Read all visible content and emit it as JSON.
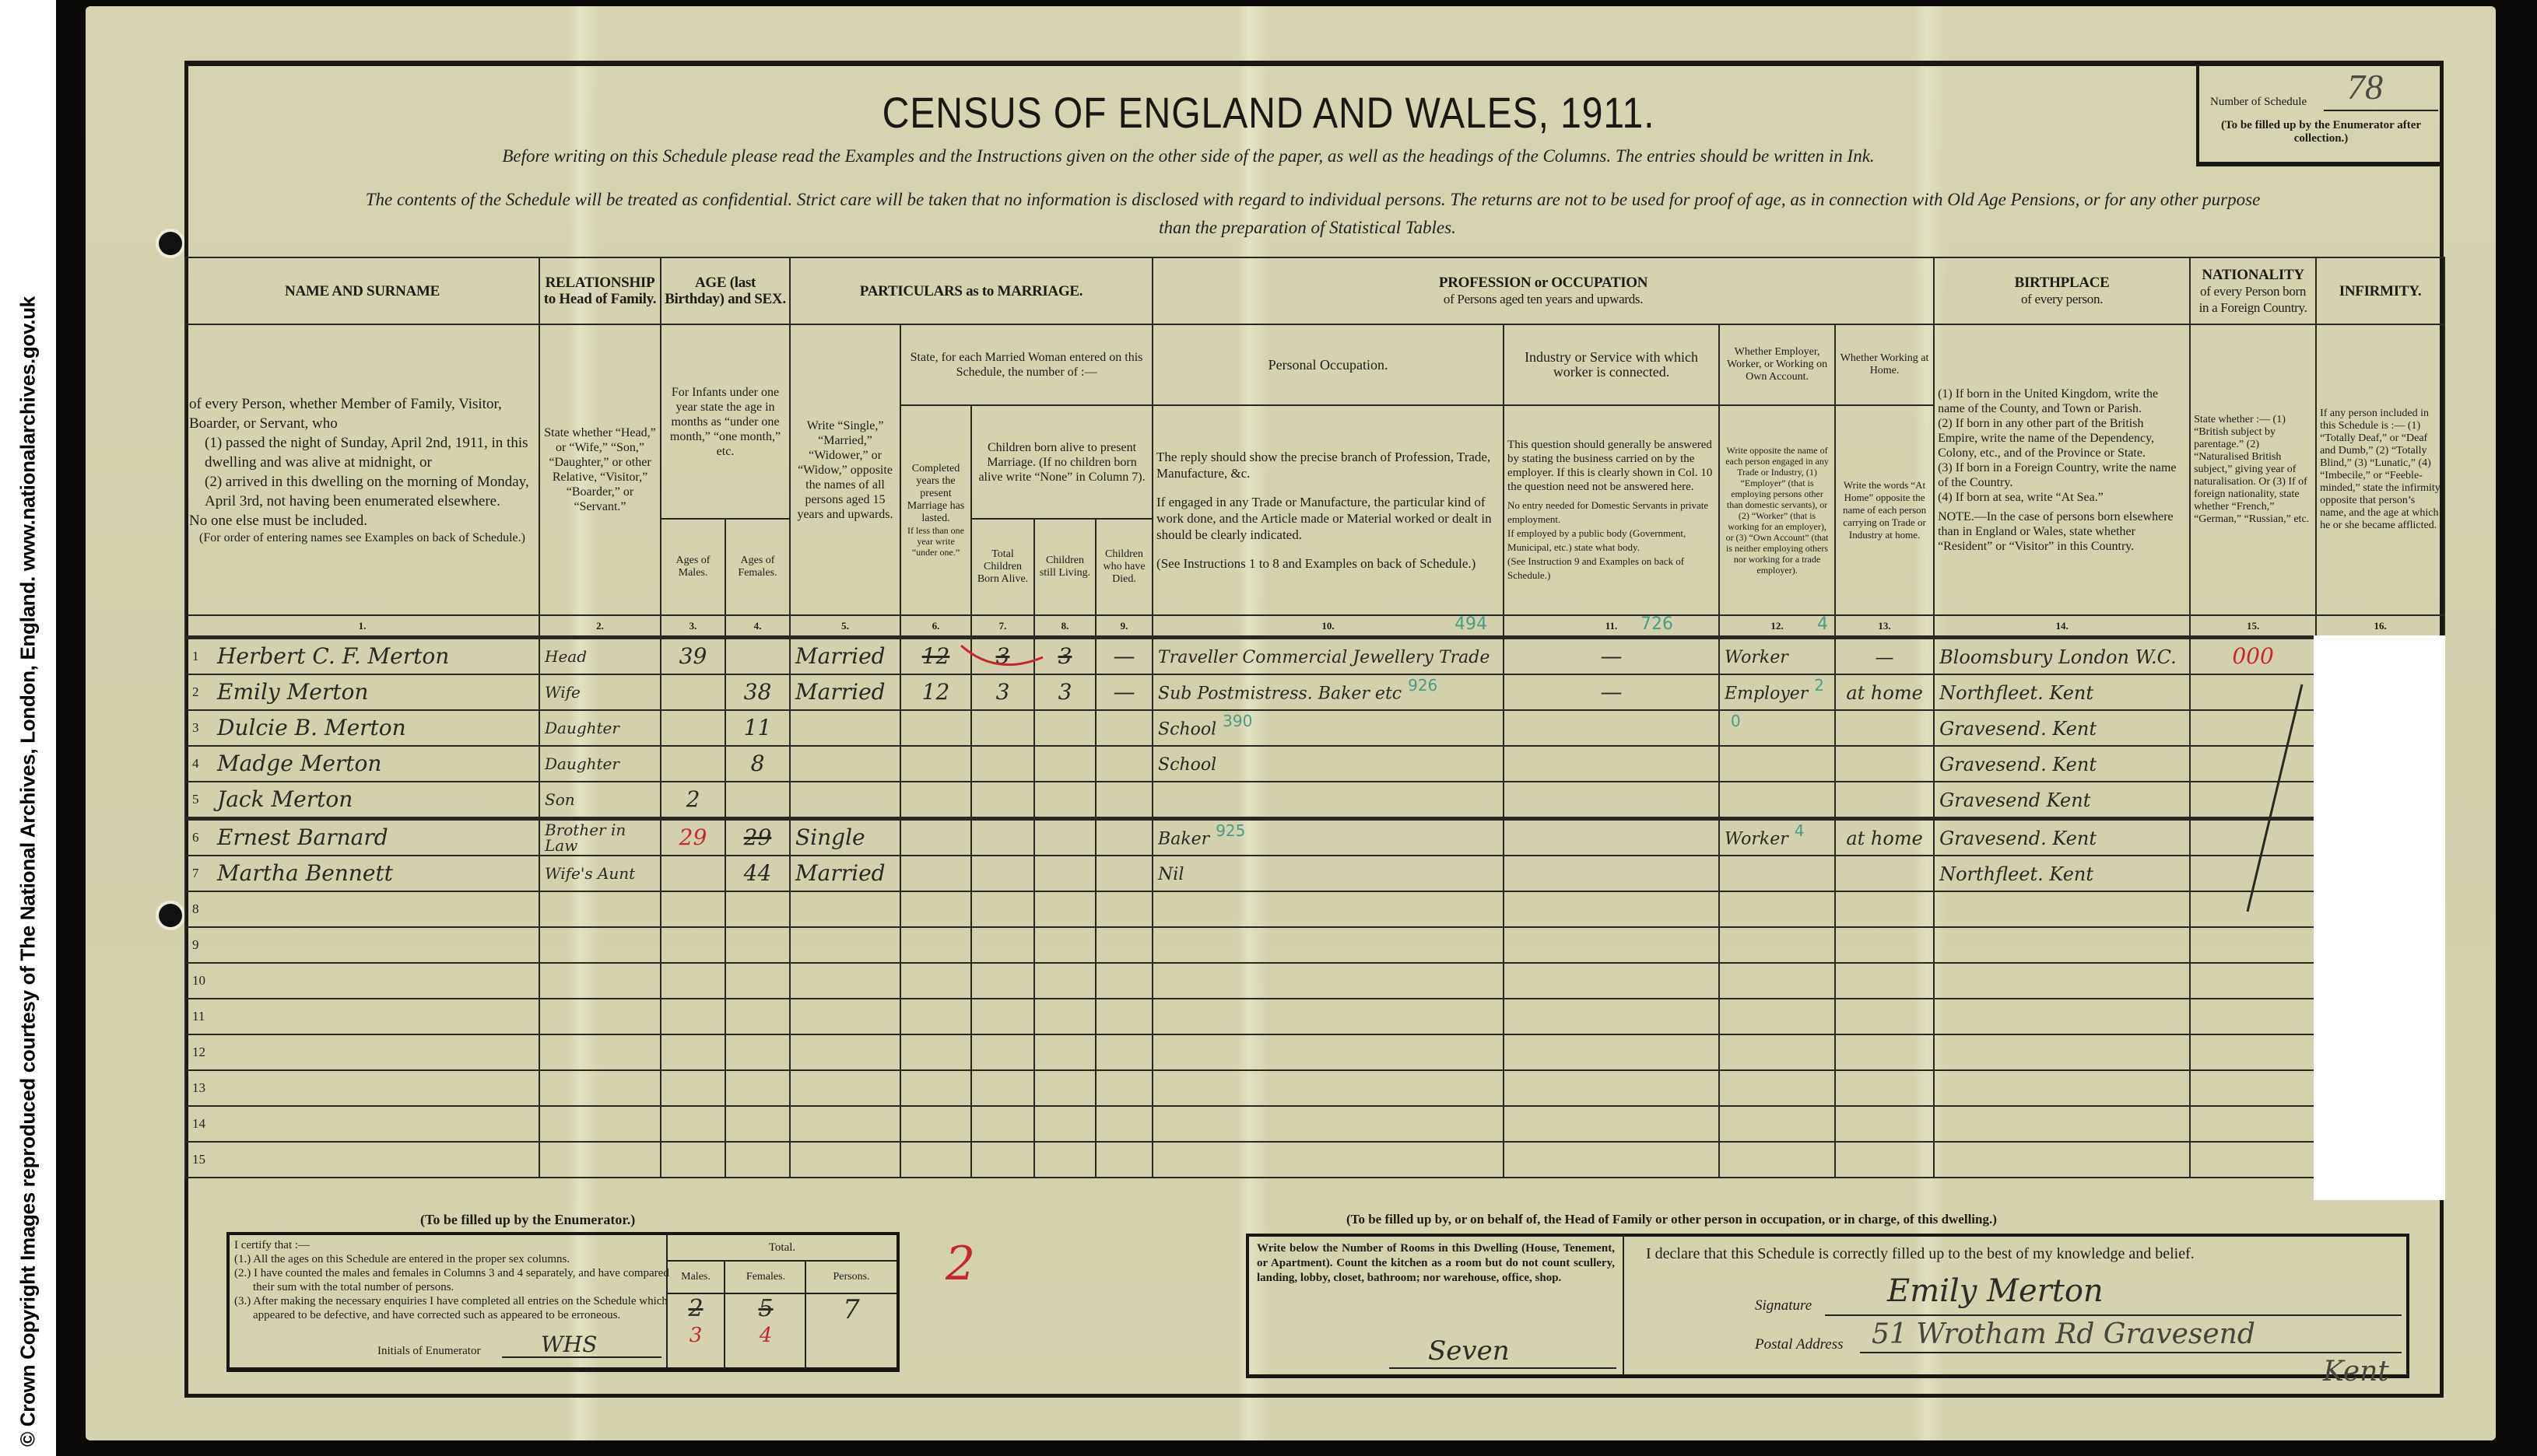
{
  "copyright": "© Crown Copyright Images reproduced courtesy of The National Archives, London, England. www.nationalarchives.gov.uk",
  "title": "CENSUS OF ENGLAND AND WALES, 1911.",
  "instructions": [
    "Before writing on this Schedule please read the Examples and the Instructions given on the other side of the paper, as well as the headings of the Columns.  The entries should be written in Ink.",
    "The contents of the Schedule will be treated as confidential.  Strict care will be taken that no information is disclosed with regard to individual persons.  The returns are not to be used for proof of age, as in connection with Old Age Pensions, or for any other purpose",
    "than the preparation of Statistical Tables."
  ],
  "schedule": {
    "label": "Number of Schedule",
    "value": "78",
    "note": "(To be filled up by the Enumerator after collection.)"
  },
  "headers": {
    "name": "NAME AND SURNAME",
    "name_desc": [
      "of every Person, whether Member of Family, Visitor, Boarder, or Servant, who",
      "(1) passed the night of Sunday, April 2nd, 1911, in this dwelling and was alive at midnight, or",
      "(2) arrived in this dwelling on the morning of Monday, April 3rd, not having been enumerated elsewhere.",
      "No one else must be included.",
      "(For order of entering names see Examples on back of Schedule.)"
    ],
    "relationship": "RELATIONSHIP to Head of Family.",
    "relationship_desc": "State whether “Head,” or “Wife,” “Son,” “Daughter,” or other Relative, “Visitor,” “Boarder,” or “Servant.”",
    "age": "AGE (last Birthday) and SEX.",
    "age_desc": "For Infants under one year state the age in months as “under one month,” “one month,” etc.",
    "ages_males": "Ages of Males.",
    "ages_females": "Ages of Females.",
    "marriage": "PARTICULARS as to MARRIAGE.",
    "marriage_write": "Write “Single,” “Married,” “Widower,” or “Widow,” opposite the names of all persons aged 15 years and upwards.",
    "married_woman": "State, for each Married Woman entered on this Schedule, the number of :—",
    "completed_years": "Completed years the present Marriage has lasted.",
    "completed_years_note": "If less than one year write “under one.”",
    "children_header": "Children born alive to present Marriage. (If no children born alive write “None” in Column 7).",
    "children_total": "Total Children Born Alive.",
    "children_living": "Children still Living.",
    "children_died": "Children who have Died.",
    "profession": "PROFESSION or OCCUPATION",
    "profession_sub": "of Persons aged ten years and upwards.",
    "personal_occupation": "Personal Occupation.",
    "personal_occupation_desc": [
      "The reply should show the precise branch of Profession, Trade, Manufacture, &c.",
      "If engaged in any Trade or Manufacture, the particular kind of work done, and the Article made or Material worked or dealt in should be clearly indicated.",
      "(See Instructions 1 to 8 and Examples on back of Schedule.)"
    ],
    "industry": "Industry or Service with which worker is connected.",
    "industry_desc": [
      "This question should generally be answered by stating the business carried on by the employer. If this is clearly shown in Col. 10 the question need not be answered here.",
      "No entry needed for Domestic Servants in private employment.",
      "If employed by a public body (Government, Municipal, etc.) state what body.",
      "(See Instruction 9 and Examples on back of Schedule.)"
    ],
    "employer": "Whether Employer, Worker, or Working on Own Account.",
    "employer_desc": "Write opposite the name of each person engaged in any Trade or Industry, (1) “Employer” (that is employing persons other than domestic servants), or (2) “Worker” (that is working for an employer), or (3) “Own Account” (that is neither employing others nor working for a trade employer).",
    "at_home": "Whether Working at Home.",
    "at_home_desc": "Write the words “At Home” opposite the name of each person carrying on Trade or Industry at home.",
    "birthplace": "BIRTHPLACE",
    "birthplace_sub": "of every person.",
    "birthplace_desc": [
      "(1) If born in the United Kingdom, write the name of the County, and Town or Parish.",
      "(2) If born in any other part of the British Empire, write the name of the Dependency, Colony, etc., and of the Province or State.",
      "(3) If born in a Foreign Country, write the name of the Country.",
      "(4) If born at sea, write “At Sea.”",
      "NOTE.—In the case of persons born elsewhere than in England or Wales, state whether “Resident” or “Visitor” in this Country."
    ],
    "nationality": "NATIONALITY",
    "nationality_sub": "of every Person born in a Foreign Country.",
    "nationality_desc": "State whether :— (1) “British subject by parentage.” (2) “Naturalised British subject,” giving year of naturalisation. Or (3) If of foreign nationality, state whether “French,” “German,” “Russian,” etc.",
    "infirmity": "INFIRMITY.",
    "infirmity_desc": "If any person included in this Schedule is :— (1) “Totally Deaf,” or “Deaf and Dumb,” (2) “Totally Blind,” (3) “Lunatic,” (4) “Imbecile,” or “Feeble-minded,” state the infirmity opposite that person’s name, and the age at which he or she became afflicted.",
    "column_numbers": [
      "1.",
      "2.",
      "3.",
      "4.",
      "5.",
      "6.",
      "7.",
      "8.",
      "9.",
      "10.",
      "11.",
      "12.",
      "13.",
      "14.",
      "15.",
      "16."
    ]
  },
  "rows": [
    {
      "n": "1",
      "name": "Herbert C. F. Merton",
      "relationship": "Head",
      "age_male": "39",
      "age_female": "",
      "marriage": "Married",
      "years": "12",
      "total": "3",
      "living": "3",
      "died": "—",
      "occupation": "Traveller Commercial Jewellery Trade",
      "industry": "—",
      "employment": "Worker",
      "at_home": "—",
      "birthplace": "Bloomsbury London W.C.",
      "nationality": "000",
      "infirmity": "",
      "codes": {
        "occupation": "494",
        "industry": "726",
        "employment": "4"
      },
      "struck": [
        "years",
        "total",
        "living"
      ],
      "red": [
        "nationality"
      ]
    },
    {
      "n": "2",
      "name": "Emily Merton",
      "relationship": "Wife",
      "age_male": "",
      "age_female": "38",
      "marriage": "Married",
      "years": "12",
      "total": "3",
      "living": "3",
      "died": "—",
      "occupation": "Sub Postmistress. Baker etc",
      "industry": "—",
      "employment": "Employer",
      "at_home": "at home",
      "birthplace": "Northfleet. Kent",
      "nationality": "",
      "infirmity": "",
      "codes": {
        "occupation": "926",
        "employment": "2"
      }
    },
    {
      "n": "3",
      "name": "Dulcie B. Merton",
      "relationship": "Daughter",
      "age_male": "",
      "age_female": "11",
      "marriage": "",
      "years": "",
      "total": "",
      "living": "",
      "died": "",
      "occupation": "School",
      "industry": "",
      "employment": "",
      "at_home": "",
      "birthplace": "Gravesend. Kent",
      "nationality": "",
      "infirmity": "",
      "codes": {
        "occupation": "390",
        "employment": "0"
      }
    },
    {
      "n": "4",
      "name": "Madge Merton",
      "relationship": "Daughter",
      "age_male": "",
      "age_female": "8",
      "marriage": "",
      "years": "",
      "total": "",
      "living": "",
      "died": "",
      "occupation": "School",
      "industry": "",
      "employment": "",
      "at_home": "",
      "birthplace": "Gravesend. Kent",
      "nationality": "",
      "infirmity": ""
    },
    {
      "n": "5",
      "name": "Jack Merton",
      "relationship": "Son",
      "age_male": "2",
      "age_female": "",
      "marriage": "",
      "years": "",
      "total": "",
      "living": "",
      "died": "",
      "occupation": "",
      "industry": "",
      "employment": "",
      "at_home": "",
      "birthplace": "Gravesend Kent",
      "nationality": "",
      "infirmity": ""
    },
    {
      "n": "6",
      "name": "Ernest Barnard",
      "relationship": "Brother in Law",
      "age_male": "29",
      "age_female": "29",
      "marriage": "Single",
      "years": "",
      "total": "",
      "living": "",
      "died": "",
      "occupation": "Baker",
      "industry": "",
      "employment": "Worker",
      "at_home": "at home",
      "birthplace": "Gravesend. Kent",
      "nationality": "",
      "infirmity": "",
      "codes": {
        "occupation": "925",
        "employment": "4"
      },
      "struck": [
        "age_female"
      ],
      "red": [
        "age_male"
      ]
    },
    {
      "n": "7",
      "name": "Martha Bennett",
      "relationship": "Wife's Aunt",
      "age_male": "",
      "age_female": "44",
      "marriage": "Married",
      "years": "",
      "total": "",
      "living": "",
      "died": "",
      "occupation": "Nil",
      "industry": "",
      "employment": "",
      "at_home": "",
      "birthplace": "Northfleet. Kent",
      "nationality": "",
      "infirmity": ""
    },
    {
      "n": "8"
    },
    {
      "n": "9"
    },
    {
      "n": "10"
    },
    {
      "n": "11"
    },
    {
      "n": "12"
    },
    {
      "n": "13"
    },
    {
      "n": "14"
    },
    {
      "n": "15"
    }
  ],
  "enumerator": {
    "label": "(To be filled up by the Enumerator.)",
    "certify": [
      "I certify that :—",
      "(1.) All the ages on this Schedule are entered in the proper sex columns.",
      "(2.) I have counted the males and females in Columns 3 and 4 separately, and have compared their sum with the total number of persons.",
      "(3.) After making the necessary enquiries I have completed all entries on the Schedule which appeared to be defective, and have corrected such as appeared to be erroneous."
    ],
    "initials_label": "Initials of Enumerator",
    "initials": "WHS",
    "total_label": "Total.",
    "males_label": "Males.",
    "females_label": "Females.",
    "persons_label": "Persons.",
    "males_original": "2",
    "males_corrected": "3",
    "females_original": "5",
    "females_corrected": "4",
    "persons": "7",
    "red_mark": "2"
  },
  "household": {
    "label": "(To be filled up by, or on behalf of, the Head of Family or other person in occupation, or in charge, of this dwelling.)",
    "rooms_instruction": "Write below the Number of Rooms in this Dwelling (House, Tenement, or Apartment). Count the kitchen as a room but do not count scullery, landing, lobby, closet, bathroom; nor warehouse, office, shop.",
    "rooms": "Seven",
    "declaration": "I declare that this Schedule is correctly filled up to the best of my knowledge and belief.",
    "signature_label": "Signature",
    "signature": "Emily Merton",
    "address_label": "Postal Address",
    "address_line1": "51 Wrotham Rd Gravesend",
    "address_line2": "Kent"
  },
  "colors": {
    "paper": "#d4d2b0",
    "ink": "#2a2823",
    "enumerator_green": "#4d9a86",
    "red_pencil": "#c8262e"
  }
}
